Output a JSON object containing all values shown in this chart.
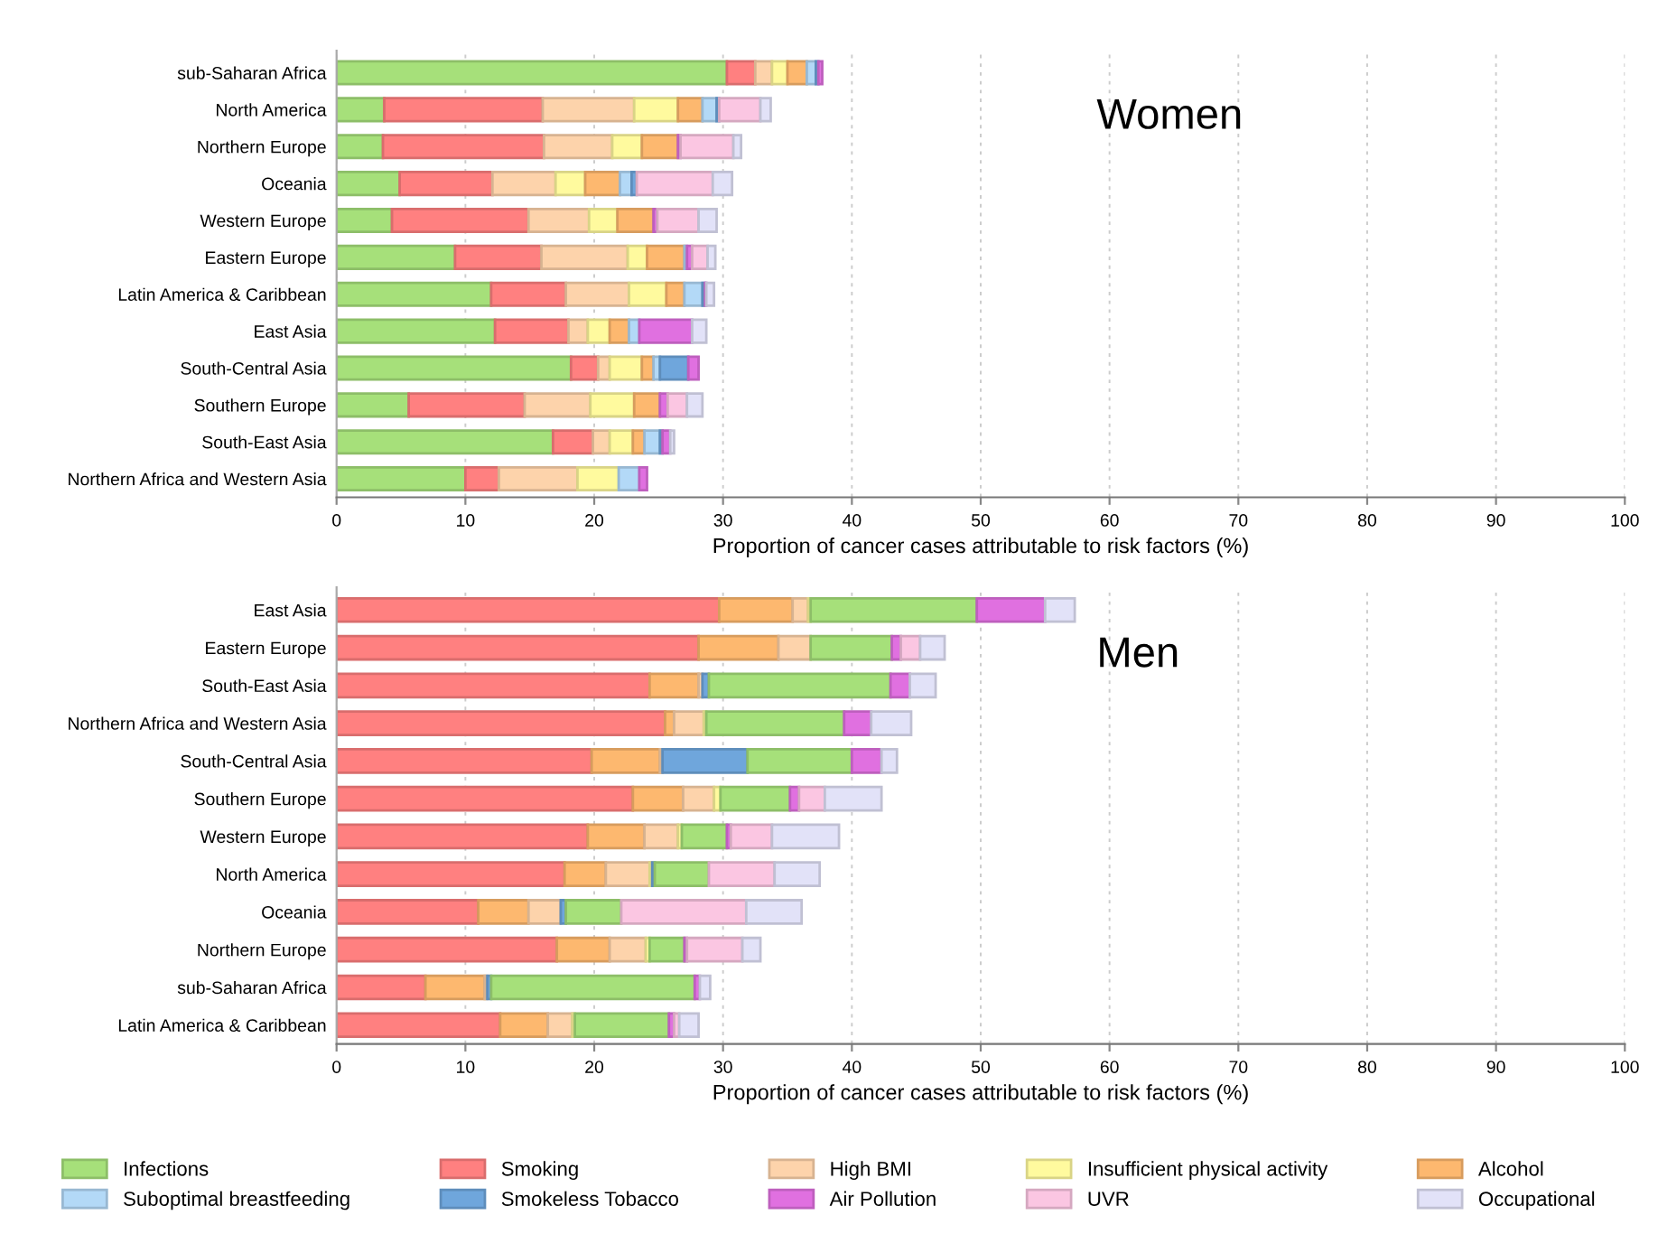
{
  "chart_data": [
    {
      "type": "bar",
      "orientation": "horizontal",
      "stacked": true,
      "title": "Women",
      "xlabel": "Proportion of cancer cases attributable to risk factors (%)",
      "xlim": [
        0,
        100
      ],
      "xticks": [
        0,
        10,
        20,
        30,
        40,
        50,
        60,
        70,
        80,
        90,
        100
      ],
      "grid": "x",
      "legend": "bottom",
      "categories": [
        "sub-Saharan Africa",
        "North America",
        "Northern Europe",
        "Oceania",
        "Western Europe",
        "Eastern Europe",
        "Latin America & Caribbean",
        "East Asia",
        "South-Central Asia",
        "Southern Europe",
        "South-East Asia",
        "Northern Africa and Western Asia"
      ],
      "series": [
        {
          "name": "Infections",
          "color": "#a6e07a",
          "values": [
            30.3,
            3.7,
            3.6,
            4.9,
            4.3,
            9.2,
            12.0,
            12.3,
            18.2,
            5.6,
            16.8,
            10.0
          ]
        },
        {
          "name": "Smoking",
          "color": "#ff8080",
          "values": [
            2.2,
            12.3,
            12.5,
            7.2,
            10.6,
            6.7,
            5.8,
            5.7,
            2.1,
            9.0,
            3.1,
            2.6
          ]
        },
        {
          "name": "High BMI",
          "color": "#fdd3ab",
          "values": [
            1.3,
            7.1,
            5.3,
            4.9,
            4.7,
            6.7,
            4.9,
            1.5,
            0.9,
            5.1,
            1.3,
            6.1
          ]
        },
        {
          "name": "Insufficient physical activity",
          "color": "#fffa9e",
          "values": [
            1.2,
            3.4,
            2.3,
            2.3,
            2.2,
            1.5,
            2.9,
            1.7,
            2.5,
            3.4,
            1.8,
            3.2
          ]
        },
        {
          "name": "Alcohol",
          "color": "#fdb86f",
          "values": [
            1.5,
            1.9,
            2.8,
            2.7,
            2.8,
            2.9,
            1.4,
            1.5,
            0.9,
            2.0,
            0.9,
            null
          ]
        },
        {
          "name": "Suboptimal breastfeeding",
          "color": "#b3d9f7",
          "values": [
            0.7,
            1.1,
            null,
            0.9,
            null,
            0.2,
            1.4,
            0.8,
            0.5,
            null,
            1.2,
            1.6
          ]
        },
        {
          "name": "Smokeless Tobacco",
          "color": "#6fa6dc",
          "values": [
            0.2,
            0.2,
            null,
            0.4,
            null,
            null,
            0.2,
            null,
            2.2,
            null,
            0.2,
            null
          ]
        },
        {
          "name": "Air Pollution",
          "color": "#e070e0",
          "values": [
            0.3,
            null,
            0.2,
            null,
            0.3,
            0.4,
            0.1,
            4.1,
            0.8,
            0.6,
            0.6,
            0.6
          ]
        },
        {
          "name": "UVR",
          "color": "#fbc6e2",
          "values": [
            null,
            3.2,
            4.1,
            5.9,
            3.2,
            1.2,
            null,
            null,
            null,
            1.5,
            null,
            null
          ]
        },
        {
          "name": "Occupational",
          "color": "#e2e2f8",
          "values": [
            null,
            0.8,
            0.6,
            1.5,
            1.4,
            0.6,
            0.6,
            1.1,
            null,
            1.2,
            0.3,
            null
          ]
        }
      ]
    },
    {
      "type": "bar",
      "orientation": "horizontal",
      "stacked": true,
      "title": "Men",
      "xlabel": "Proportion of cancer cases attributable to risk factors (%)",
      "xlim": [
        0,
        100
      ],
      "xticks": [
        0,
        10,
        20,
        30,
        40,
        50,
        60,
        70,
        80,
        90,
        100
      ],
      "grid": "x",
      "categories": [
        "East Asia",
        "Eastern Europe",
        "South-East Asia",
        "Northern Africa and Western Asia",
        "South-Central Asia",
        "Southern Europe",
        "Western Europe",
        "North America",
        "Oceania",
        "Northern Europe",
        "sub-Saharan Africa",
        "Latin America & Caribbean"
      ],
      "series": [
        {
          "name": "Smoking",
          "color": "#ff8080",
          "values": [
            29.7,
            28.1,
            24.3,
            25.5,
            19.8,
            23.0,
            19.5,
            17.7,
            11.0,
            17.1,
            6.9,
            12.7
          ]
        },
        {
          "name": "Alcohol",
          "color": "#fdb86f",
          "values": [
            5.7,
            6.2,
            3.8,
            0.7,
            5.3,
            3.9,
            4.4,
            3.2,
            3.9,
            4.1,
            4.6,
            3.7
          ]
        },
        {
          "name": "High BMI",
          "color": "#fdd3ab",
          "values": [
            1.2,
            2.5,
            0.3,
            2.3,
            0.2,
            2.4,
            2.6,
            3.4,
            2.5,
            2.8,
            0.2,
            1.9
          ]
        },
        {
          "name": "Insufficient physical activity",
          "color": "#fffa9e",
          "values": [
            0.2,
            null,
            null,
            0.2,
            null,
            0.5,
            0.3,
            0.2,
            null,
            0.3,
            null,
            0.2
          ]
        },
        {
          "name": "Smokeless Tobacco",
          "color": "#6fa6dc",
          "values": [
            null,
            null,
            0.5,
            null,
            6.6,
            null,
            null,
            0.2,
            0.4,
            null,
            0.3,
            null
          ]
        },
        {
          "name": "Infections",
          "color": "#a6e07a",
          "values": [
            12.9,
            6.3,
            14.1,
            10.7,
            8.1,
            5.4,
            3.5,
            4.2,
            4.3,
            2.7,
            15.8,
            7.3
          ]
        },
        {
          "name": "Air Pollution",
          "color": "#e070e0",
          "values": [
            5.3,
            0.7,
            1.5,
            2.1,
            2.3,
            0.7,
            0.3,
            null,
            null,
            0.2,
            0.4,
            0.4
          ]
        },
        {
          "name": "UVR",
          "color": "#fbc6e2",
          "values": [
            null,
            1.5,
            null,
            null,
            null,
            2.0,
            3.2,
            5.1,
            9.7,
            4.3,
            null,
            0.4
          ]
        },
        {
          "name": "Occupational",
          "color": "#e2e2f8",
          "values": [
            2.3,
            1.9,
            2.0,
            3.1,
            1.2,
            4.4,
            5.2,
            3.5,
            4.3,
            1.4,
            0.8,
            1.5
          ]
        }
      ]
    }
  ]
}
